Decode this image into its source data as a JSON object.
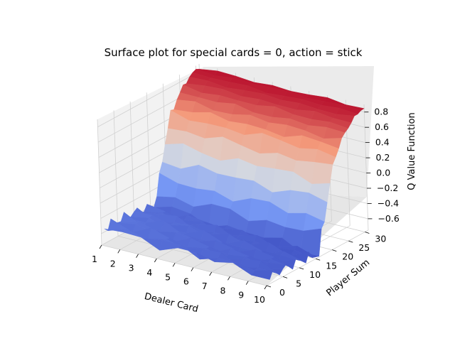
{
  "chart_data": {
    "type": "surface",
    "title": "Surface plot for special cards = 0, action = stick",
    "xlabel": "Dealer Card",
    "ylabel": "Player Sum",
    "zlabel": "Q Value Function",
    "x_ticks": [
      "1",
      "2",
      "3",
      "4",
      "5",
      "6",
      "7",
      "8",
      "9",
      "10"
    ],
    "y_ticks": [
      "0",
      "5",
      "10",
      "15",
      "20",
      "25",
      "30"
    ],
    "z_ticks": [
      "−0.6",
      "−0.4",
      "−0.2",
      "0.0",
      "0.2",
      "0.4",
      "0.6",
      "0.8"
    ],
    "xlim": [
      1,
      10
    ],
    "ylim": [
      0,
      31
    ],
    "zlim": [
      -0.75,
      0.9
    ],
    "colormap": "coolwarm",
    "grid": true,
    "approx_profile_by_player_sum": {
      "player_sum": [
        0,
        5,
        10,
        13,
        15,
        16,
        17,
        18,
        19,
        20,
        21,
        22,
        24,
        26,
        28,
        30,
        31
      ],
      "q_value": [
        -0.55,
        -0.55,
        -0.56,
        -0.58,
        -0.6,
        -0.6,
        -0.48,
        -0.3,
        -0.08,
        0.12,
        0.3,
        0.45,
        0.6,
        0.72,
        0.8,
        0.85,
        0.85
      ]
    }
  }
}
